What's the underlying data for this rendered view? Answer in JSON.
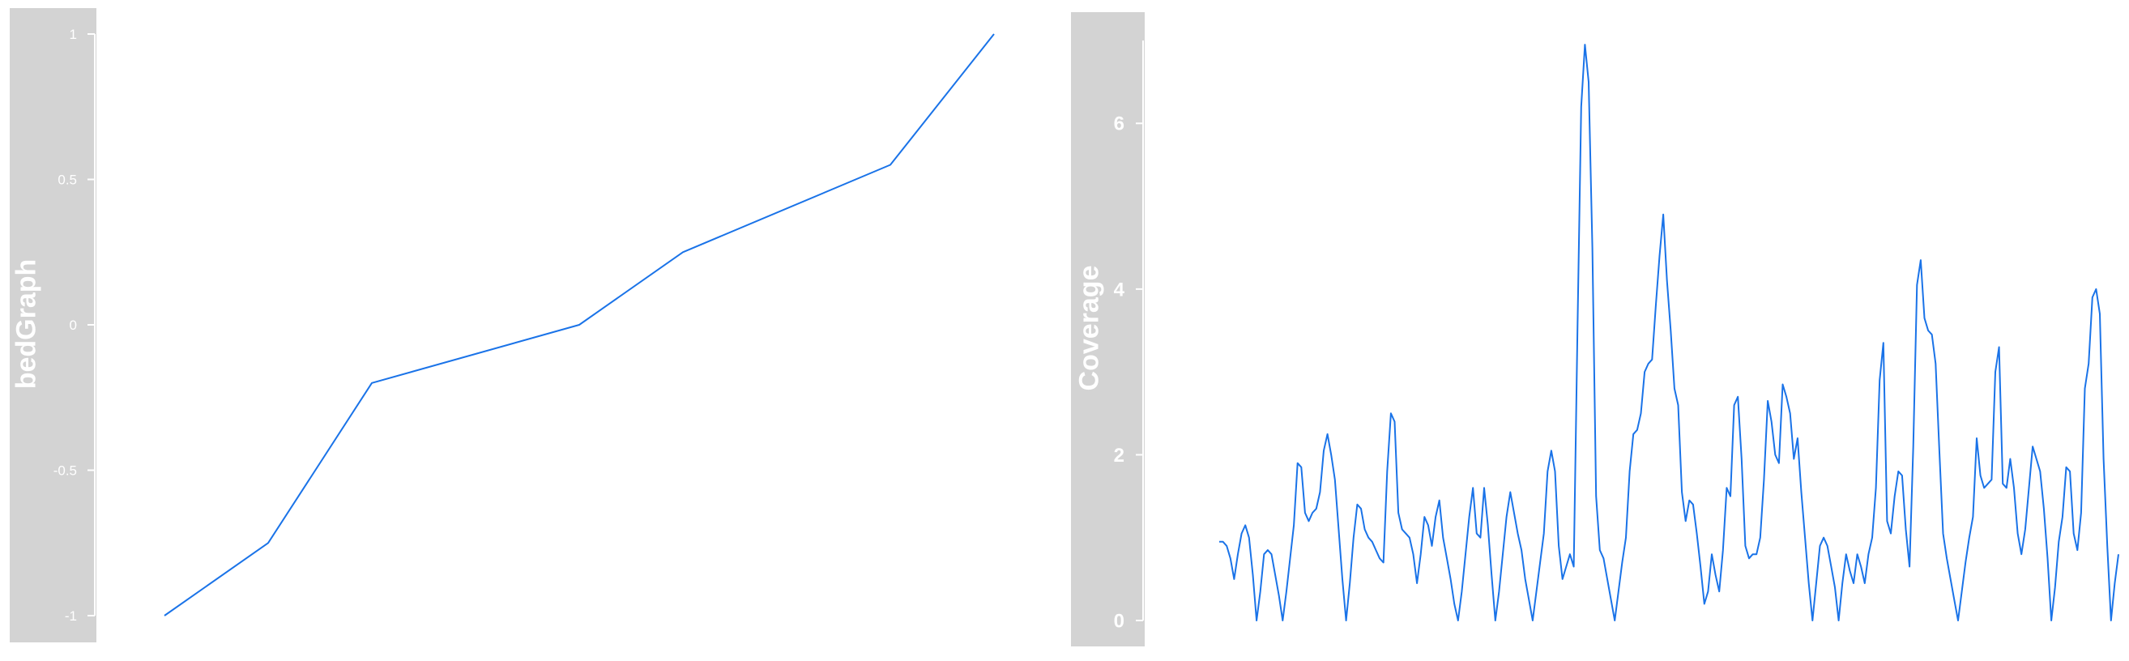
{
  "chart_data": [
    {
      "type": "line",
      "ylabel": "bedGraph",
      "yticks": [
        "1",
        "0.5",
        "0",
        "-0.5",
        "-1"
      ],
      "ylim": [
        -1,
        1
      ],
      "color": "#1a73e8",
      "series": [
        {
          "points": [
            [
              0,
              -1
            ],
            [
              1,
              -0.75
            ],
            [
              2,
              -0.2
            ],
            [
              4,
              0
            ],
            [
              5,
              0.25
            ],
            [
              7,
              0.55
            ],
            [
              8,
              1
            ]
          ]
        }
      ],
      "xlim": [
        0,
        8
      ],
      "grid": false
    },
    {
      "type": "line",
      "ylabel": "Coverage",
      "yticks": [
        "6",
        "4",
        "2",
        "0"
      ],
      "ylim": [
        0,
        7
      ],
      "color": "#1a73e8",
      "series": [
        {
          "values": [
            0.95,
            0.95,
            0.9,
            0.75,
            0.5,
            0.8,
            1.05,
            1.15,
            1,
            0.55,
            0,
            0.35,
            0.8,
            0.85,
            0.8,
            0.55,
            0.3,
            0,
            0.35,
            0.75,
            1.15,
            1.9,
            1.85,
            1.3,
            1.2,
            1.3,
            1.35,
            1.55,
            2.05,
            2.25,
            2,
            1.7,
            1.1,
            0.5,
            0,
            0.45,
            1,
            1.4,
            1.35,
            1.1,
            1,
            0.95,
            0.85,
            0.75,
            0.7,
            1.8,
            2.5,
            2.4,
            1.3,
            1.1,
            1.05,
            1,
            0.8,
            0.45,
            0.8,
            1.25,
            1.15,
            0.9,
            1.25,
            1.45,
            1,
            0.75,
            0.5,
            0.2,
            0,
            0.35,
            0.8,
            1.25,
            1.6,
            1.05,
            1,
            1.6,
            1.15,
            0.55,
            0,
            0.35,
            0.8,
            1.25,
            1.55,
            1.3,
            1.05,
            0.85,
            0.5,
            0.25,
            0,
            0.35,
            0.7,
            1.05,
            1.8,
            2.05,
            1.8,
            0.9,
            0.5,
            0.65,
            0.8,
            0.65,
            3.5,
            6.2,
            6.95,
            6.5,
            4.5,
            1.5,
            0.85,
            0.75,
            0.5,
            0.25,
            0,
            0.35,
            0.7,
            1,
            1.8,
            2.25,
            2.3,
            2.5,
            3,
            3.1,
            3.15,
            3.8,
            4.4,
            4.9,
            4.1,
            3.5,
            2.8,
            2.6,
            1.55,
            1.2,
            1.45,
            1.4,
            1.05,
            0.65,
            0.2,
            0.35,
            0.8,
            0.55,
            0.35,
            0.85,
            1.6,
            1.5,
            2.6,
            2.7,
            1.95,
            0.9,
            0.75,
            0.8,
            0.8,
            1,
            1.7,
            2.65,
            2.4,
            2,
            1.9,
            2.85,
            2.7,
            2.5,
            1.95,
            2.2,
            1.55,
            1,
            0.45,
            0,
            0.45,
            0.9,
            1,
            0.9,
            0.65,
            0.4,
            0,
            0.45,
            0.8,
            0.6,
            0.45,
            0.8,
            0.65,
            0.45,
            0.8,
            1,
            1.6,
            2.9,
            3.35,
            1.2,
            1.05,
            1.5,
            1.8,
            1.75,
            1.1,
            0.65,
            2.1,
            4.05,
            4.35,
            3.65,
            3.5,
            3.45,
            3.1,
            2.05,
            1.05,
            0.75,
            0.5,
            0.25,
            0,
            0.35,
            0.7,
            1,
            1.25,
            2.2,
            1.75,
            1.6,
            1.65,
            1.7,
            3,
            3.3,
            1.65,
            1.6,
            1.95,
            1.6,
            1.05,
            0.8,
            1.1,
            1.6,
            2.1,
            1.95,
            1.8,
            1.35,
            0.75,
            0,
            0.4,
            0.95,
            1.25,
            1.85,
            1.8,
            1.05,
            0.85,
            1.3,
            2.8,
            3.1,
            3.9,
            4,
            3.7,
            1.95,
            0.9,
            0,
            0.45,
            0.8
          ]
        }
      ],
      "grid": false
    }
  ]
}
